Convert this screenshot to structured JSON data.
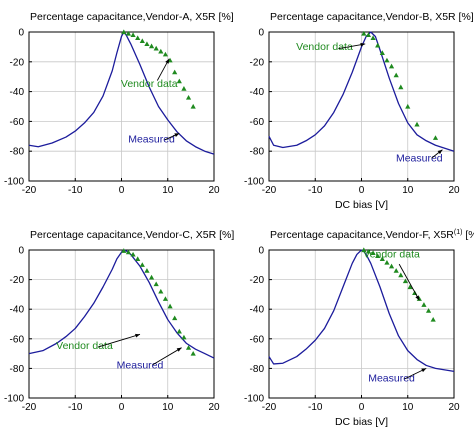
{
  "figure": {
    "colors": {
      "measured": "#1c1c9c",
      "vendor": "#1f8a1f",
      "grid": "#c8c8c8",
      "axis": "#000000"
    }
  },
  "chart_data": [
    {
      "type": "line",
      "title_main": "Percentage capacitance,Vendor-A, X5R [%]",
      "title_sup": "",
      "title_tail": "",
      "xlabel": "",
      "ylabel": "",
      "xlim": [
        -20,
        20
      ],
      "ylim": [
        -100,
        0
      ],
      "xticks": [
        -20,
        -10,
        0,
        10,
        20
      ],
      "yticks": [
        0,
        -20,
        -40,
        -60,
        -80,
        -100
      ],
      "grid": true,
      "series": [
        {
          "name": "Measured",
          "kind": "line",
          "x": [
            -20,
            -18,
            -15,
            -12,
            -10,
            -8,
            -6,
            -4,
            -2,
            -1,
            0,
            0.5,
            1,
            2,
            4,
            6,
            8,
            10,
            12,
            14,
            16,
            18,
            20
          ],
          "y": [
            -76,
            -77,
            -74.5,
            -70.5,
            -66.5,
            -61,
            -54,
            -43,
            -26,
            -14,
            -3,
            0,
            -2,
            -8,
            -22,
            -37,
            -50,
            -59,
            -67,
            -73,
            -77,
            -80,
            -82
          ]
        },
        {
          "name": "Vendor data",
          "kind": "markers",
          "x": [
            0.5,
            1.5,
            2.5,
            3.5,
            4.5,
            5.5,
            6.5,
            7.5,
            8.5,
            9.5,
            10.5,
            11.5,
            12.5,
            13.5,
            14.5,
            15.5
          ],
          "y": [
            0,
            -1,
            -2,
            -4,
            -6,
            -8,
            -9.5,
            -11,
            -13,
            -15,
            -19,
            -27,
            -33,
            -38,
            -44,
            -50
          ]
        }
      ],
      "annotations": [
        {
          "label": "Vendor data",
          "series": "Vendor data",
          "text_at": [
            6,
            -37
          ],
          "point_at": [
            10.3,
            -18
          ]
        },
        {
          "label": "Measured",
          "series": "Measured",
          "text_at": [
            6.5,
            -74
          ],
          "point_at": [
            12.5,
            -68
          ]
        }
      ]
    },
    {
      "type": "line",
      "title_main": "Percentage capacitance,Vendor-B, X5R [%]",
      "title_sup": "",
      "title_tail": "",
      "xlabel": "DC bias [V]",
      "ylabel": "",
      "xlim": [
        -20,
        20
      ],
      "ylim": [
        -100,
        0
      ],
      "xticks": [
        -20,
        -10,
        0,
        10,
        20
      ],
      "yticks": [
        0,
        -20,
        -40,
        -60,
        -80,
        -100
      ],
      "grid": true,
      "series": [
        {
          "name": "Measured",
          "kind": "line",
          "x": [
            -20,
            -19,
            -17,
            -14,
            -12,
            -10,
            -8,
            -6,
            -4,
            -2,
            0,
            1,
            2,
            3,
            4,
            6,
            8,
            10,
            12,
            14,
            16,
            18,
            20
          ],
          "y": [
            -70,
            -76,
            -77.5,
            -76,
            -73,
            -69,
            -63,
            -54,
            -42,
            -27,
            -10,
            -3,
            0,
            -3,
            -12,
            -31,
            -48,
            -61,
            -69,
            -73,
            -76,
            -78,
            -80
          ]
        },
        {
          "name": "Vendor data",
          "kind": "markers",
          "x": [
            0.5,
            1.5,
            2.5,
            3.5,
            4.5,
            5.5,
            6.5,
            7.5,
            8.5,
            10,
            12,
            16
          ],
          "y": [
            -1,
            -2,
            -4,
            -9,
            -14,
            -19,
            -23,
            -29,
            -37,
            -50,
            -62,
            -71
          ]
        }
      ],
      "annotations": [
        {
          "label": "Vendor data",
          "series": "Vendor data",
          "text_at": [
            -8,
            -12
          ],
          "point_at": [
            0.8,
            -8
          ]
        },
        {
          "label": "Measured",
          "series": "Measured",
          "text_at": [
            12.5,
            -87
          ],
          "point_at": [
            17.5,
            -79
          ]
        }
      ]
    },
    {
      "type": "line",
      "title_main": "Percentage capacitance,Vendor-C, X5R [%]",
      "title_sup": "",
      "title_tail": "",
      "xlabel": "",
      "ylabel": "",
      "xlim": [
        -20,
        20
      ],
      "ylim": [
        -100,
        0
      ],
      "xticks": [
        -20,
        -10,
        0,
        10,
        20
      ],
      "yticks": [
        0,
        -20,
        -40,
        -60,
        -80,
        -100
      ],
      "grid": true,
      "series": [
        {
          "name": "Measured",
          "kind": "line",
          "x": [
            -20,
            -17,
            -14,
            -12,
            -10,
            -8,
            -6,
            -4,
            -2,
            -1,
            0,
            0.5,
            1,
            2,
            4,
            6,
            8,
            10,
            12,
            14,
            16,
            18,
            20
          ],
          "y": [
            -70,
            -68,
            -63,
            -58.5,
            -53,
            -45,
            -36,
            -25,
            -13,
            -6,
            -1.5,
            0,
            -0.5,
            -3,
            -11,
            -22,
            -35,
            -47,
            -56,
            -63,
            -67,
            -70,
            -73
          ]
        },
        {
          "name": "Vendor data",
          "kind": "markers",
          "x": [
            0.5,
            1.5,
            2.5,
            3.5,
            4.5,
            5.5,
            6.5,
            7.5,
            8.5,
            9.5,
            10.5,
            11.5,
            12.5,
            13.5,
            14.5,
            15.5
          ],
          "y": [
            -0.5,
            -1.5,
            -3,
            -6,
            -10,
            -14,
            -18.5,
            -23,
            -28,
            -33,
            -38,
            -46,
            -55,
            -59,
            -66,
            -70
          ]
        }
      ],
      "annotations": [
        {
          "label": "Vendor data",
          "series": "Vendor data",
          "text_at": [
            -8,
            -67
          ],
          "point_at": [
            4,
            -57
          ]
        },
        {
          "label": "Measured",
          "series": "Measured",
          "text_at": [
            4,
            -80
          ],
          "point_at": [
            13,
            -66
          ]
        }
      ]
    },
    {
      "type": "line",
      "title_main": "Percentage capacitance,Vendor-F, X5R",
      "title_sup": "(1)",
      "title_tail": " [%]",
      "xlabel": "DC bias [V]",
      "ylabel": "",
      "xlim": [
        -20,
        20
      ],
      "ylim": [
        -100,
        0
      ],
      "xticks": [
        -20,
        -10,
        0,
        10,
        20
      ],
      "yticks": [
        0,
        -20,
        -40,
        -60,
        -80,
        -100
      ],
      "grid": true,
      "series": [
        {
          "name": "Measured",
          "kind": "line",
          "x": [
            -20,
            -19,
            -17,
            -14,
            -12,
            -10,
            -8,
            -6,
            -4,
            -2,
            -1,
            0,
            0.5,
            1,
            2,
            4,
            6,
            8,
            10,
            12,
            14,
            16,
            18,
            20
          ],
          "y": [
            -72,
            -77,
            -76.5,
            -72,
            -67,
            -61,
            -53,
            -41,
            -25,
            -9,
            -3,
            0,
            -1,
            -3,
            -9,
            -25,
            -43,
            -58,
            -68,
            -74,
            -78,
            -80,
            -81,
            -82
          ]
        },
        {
          "name": "Vendor data",
          "kind": "markers",
          "x": [
            0.5,
            1.5,
            2.5,
            3.5,
            4.5,
            5.5,
            6.5,
            7.5,
            8.5,
            9.5,
            10.5,
            11.5,
            12.5,
            13.5,
            14.5,
            15.5
          ],
          "y": [
            0,
            -1,
            -2,
            -4,
            -6,
            -8.5,
            -11,
            -14,
            -17,
            -21,
            -25,
            -29,
            -33,
            -37,
            -41,
            -47
          ]
        }
      ],
      "annotations": [
        {
          "label": "Vendor data",
          "series": "Vendor data",
          "text_at": [
            6.5,
            -5
          ],
          "point_at": [
            12.5,
            -34
          ]
        },
        {
          "label": "Measured",
          "series": "Measured",
          "text_at": [
            6.5,
            -89
          ],
          "point_at": [
            14,
            -80
          ]
        }
      ]
    }
  ]
}
